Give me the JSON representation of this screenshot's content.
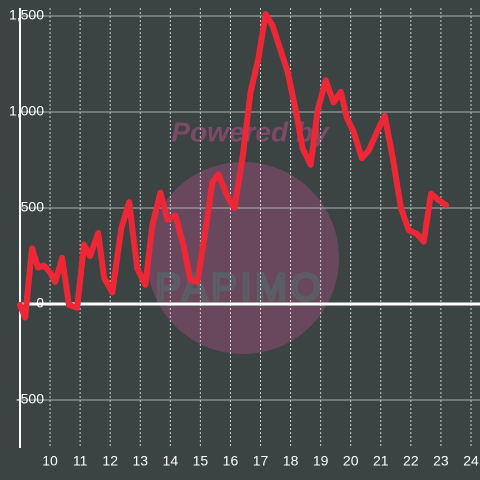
{
  "chart_data": {
    "type": "line",
    "watermark": [
      "Powered by",
      "PAPIMO"
    ],
    "xlim": [
      9,
      24.3
    ],
    "xticks": [
      10,
      11,
      12,
      13,
      14,
      15,
      16,
      17,
      18,
      19,
      20,
      21,
      22,
      23,
      24
    ],
    "ylim": [
      -750,
      1500
    ],
    "yticks": [
      {
        "value": 1500,
        "label": "1,500"
      },
      {
        "value": 1000,
        "label": "1,000"
      },
      500,
      0,
      -500
    ],
    "grid": true,
    "series": [
      {
        "color": "#ee2737",
        "x": [
          9.0,
          9.17,
          9.4,
          9.6,
          9.8,
          10.0,
          10.17,
          10.4,
          10.63,
          10.9,
          11.13,
          11.33,
          11.6,
          11.8,
          12.07,
          12.37,
          12.63,
          12.9,
          13.17,
          13.4,
          13.67,
          13.9,
          14.17,
          14.43,
          14.67,
          14.9,
          15.17,
          15.4,
          15.6,
          15.9,
          16.13,
          16.4,
          16.67,
          16.93,
          17.17,
          17.4,
          17.67,
          17.9,
          18.17,
          18.4,
          18.67,
          18.9,
          19.17,
          19.43,
          19.67,
          19.87,
          20.1,
          20.37,
          20.6,
          20.87,
          21.13,
          21.4,
          21.67,
          21.93,
          22.2,
          22.43,
          22.67,
          22.93,
          23.17
        ],
        "values": [
          -5,
          -70,
          290,
          190,
          200,
          165,
          115,
          240,
          -5,
          -20,
          310,
          250,
          370,
          135,
          60,
          395,
          530,
          185,
          100,
          410,
          580,
          440,
          460,
          310,
          125,
          115,
          385,
          635,
          675,
          560,
          500,
          760,
          1105,
          1280,
          1510,
          1450,
          1320,
          1210,
          1010,
          810,
          725,
          1010,
          1165,
          1050,
          1105,
          970,
          895,
          760,
          800,
          895,
          980,
          760,
          500,
          385,
          365,
          325,
          575,
          540,
          515
        ]
      }
    ]
  }
}
